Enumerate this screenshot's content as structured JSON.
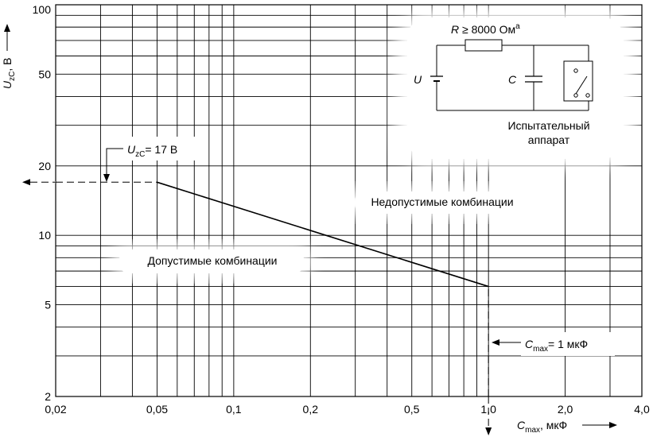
{
  "chart_data": {
    "type": "line",
    "xscale": "log",
    "yscale": "log",
    "xlim": [
      0.02,
      4.0
    ],
    "ylim": [
      2,
      100
    ],
    "grid": true,
    "x_tick_labels": [
      {
        "v": 0.02,
        "t": "0,02"
      },
      {
        "v": 0.05,
        "t": "0,05"
      },
      {
        "v": 0.1,
        "t": "0,1"
      },
      {
        "v": 0.2,
        "t": "0,2"
      },
      {
        "v": 0.5,
        "t": "0,5"
      },
      {
        "v": 1.0,
        "t": "1,0"
      },
      {
        "v": 2.0,
        "t": "2,0"
      },
      {
        "v": 4.0,
        "t": "4,0"
      }
    ],
    "y_tick_labels": [
      {
        "v": 2,
        "t": "2"
      },
      {
        "v": 5,
        "t": "5"
      },
      {
        "v": 10,
        "t": "10"
      },
      {
        "v": 20,
        "t": "20"
      },
      {
        "v": 50,
        "t": "50"
      },
      {
        "v": 100,
        "t": "100"
      }
    ],
    "x_grid": [
      0.03,
      0.04,
      0.05,
      0.06,
      0.07,
      0.08,
      0.09,
      0.1,
      0.2,
      0.3,
      0.4,
      0.5,
      0.6,
      0.7,
      0.8,
      0.9,
      1.0,
      2.0,
      3.0
    ],
    "y_grid": [
      3,
      4,
      5,
      6,
      7,
      8,
      9,
      10,
      20,
      30,
      40,
      50,
      60,
      70,
      80,
      90
    ],
    "xlabel": {
      "var": "C",
      "sub": "max",
      "rest": ", мкФ"
    },
    "ylabel": {
      "var": "U",
      "sub": "zC",
      "rest": ", В"
    },
    "series": [
      {
        "x": [
          0.05,
          1.0
        ],
        "y": [
          17,
          6
        ]
      }
    ],
    "reference_lines": [
      {
        "x": [
          0.02,
          0.05
        ],
        "y": [
          17,
          17
        ],
        "style": "dashed"
      },
      {
        "x": [
          1.0,
          1.0
        ],
        "y": [
          2,
          6
        ],
        "style": "dashed"
      }
    ],
    "annotations": {
      "uzc": {
        "var": "U",
        "sub": "zC",
        "rest": "= 17 В"
      },
      "cmax": {
        "var": "C",
        "sub": "max",
        "rest": "= 1 мкФ"
      },
      "permitted": "Допустимые комбинации",
      "forbidden": "Недопустимые комбинации"
    },
    "circuit": {
      "resistor_label": {
        "var": "R",
        "rest": " ≥ 8000 Ом",
        "sup": "a"
      },
      "source_label": "U",
      "capacitor_label": "C",
      "apparatus_label_line1": "Испытательный",
      "apparatus_label_line2": "аппарат"
    }
  }
}
